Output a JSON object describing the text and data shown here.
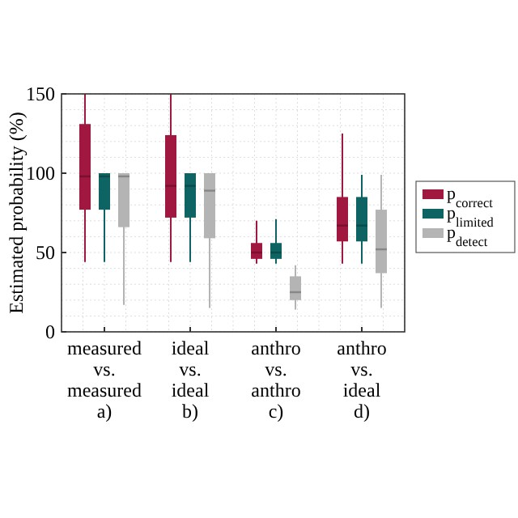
{
  "chart_data": {
    "type": "box",
    "ylabel": "Estimated probability (%)",
    "categories": [
      "measured\nvs.\nmeasured\na)",
      "ideal\nvs.\nideal\nb)",
      "anthro\nvs.\nanthro\nc)",
      "anthro\nvs.\nideal\nd)"
    ],
    "ylim": [
      0,
      150
    ],
    "yticks": [
      0,
      50,
      100,
      150
    ],
    "grid": true,
    "legend": "right",
    "series": [
      {
        "name": "p$_{correct}$",
        "color": "#a0173f",
        "boxes": [
          {
            "low": 44,
            "q1": 77,
            "median": 98,
            "q3": 131,
            "high": 150
          },
          {
            "low": 44,
            "q1": 72,
            "median": 92,
            "q3": 124,
            "high": 150
          },
          {
            "low": 43,
            "q1": 46,
            "median": 50,
            "q3": 56,
            "high": 70
          },
          {
            "low": 43,
            "q1": 57,
            "median": 67,
            "q3": 85,
            "high": 125
          }
        ]
      },
      {
        "name": "p$_{limited}$",
        "color": "#0e6462",
        "boxes": [
          {
            "low": 44,
            "q1": 77,
            "median": 98,
            "q3": 100,
            "high": 100
          },
          {
            "low": 44,
            "q1": 72,
            "median": 92,
            "q3": 100,
            "high": 100
          },
          {
            "low": 43,
            "q1": 46,
            "median": 50,
            "q3": 56,
            "high": 71
          },
          {
            "low": 43,
            "q1": 57,
            "median": 67,
            "q3": 85,
            "high": 99
          }
        ]
      },
      {
        "name": "p$_{detect}$",
        "color": "#b4b4b4",
        "boxes": [
          {
            "low": 17,
            "q1": 66,
            "median": 98,
            "q3": 100,
            "high": 100
          },
          {
            "low": 15,
            "q1": 59,
            "median": 89,
            "q3": 100,
            "high": 100
          },
          {
            "low": 14,
            "q1": 20,
            "median": 25,
            "q3": 35,
            "high": 42
          },
          {
            "low": 15,
            "q1": 37,
            "median": 52,
            "q3": 77,
            "high": 99
          }
        ]
      }
    ]
  }
}
